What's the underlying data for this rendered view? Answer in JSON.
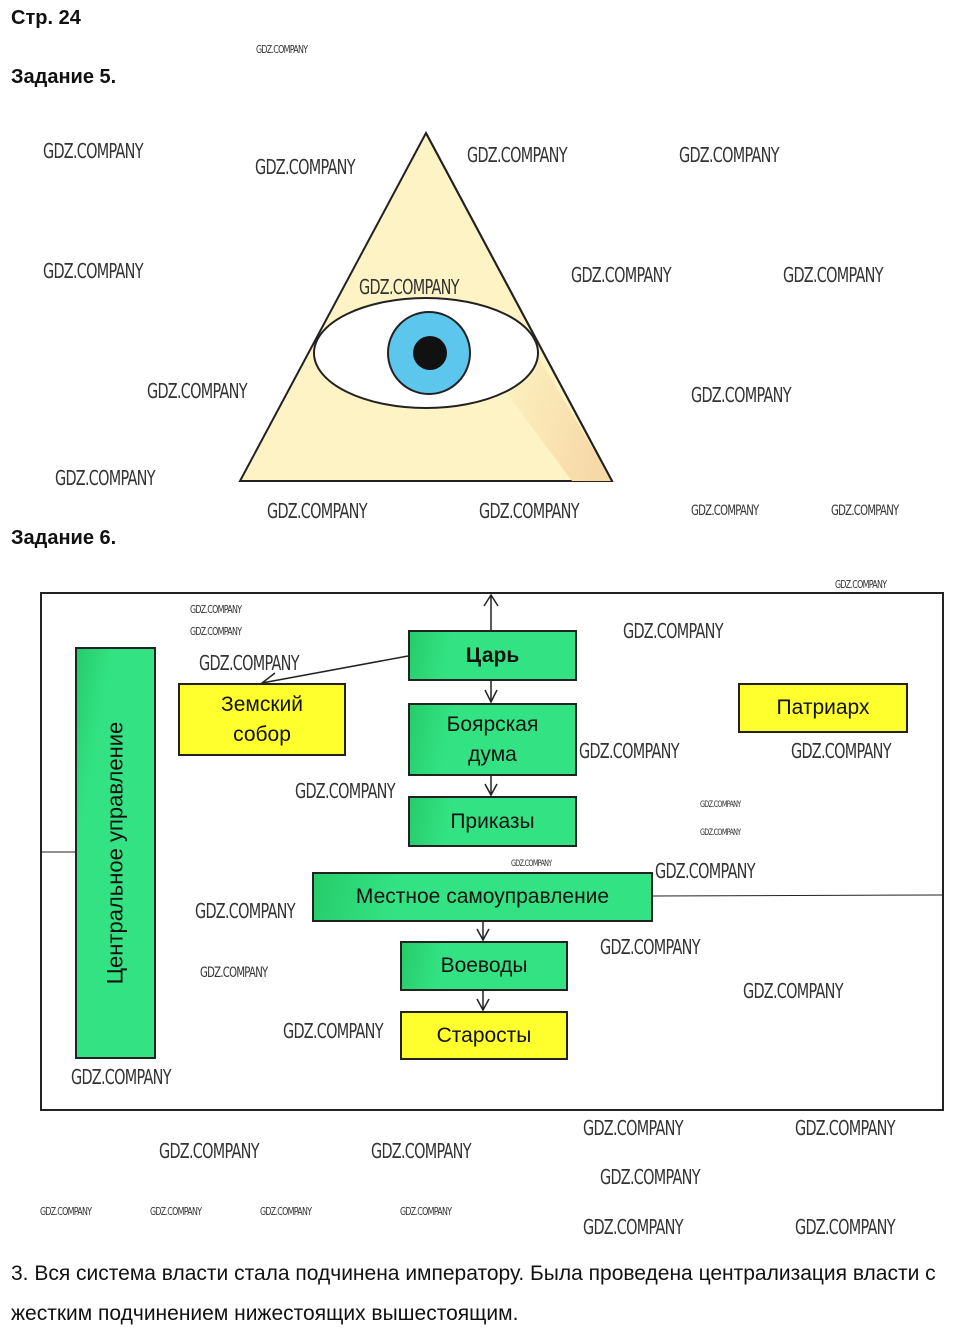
{
  "page_label": "Стр. 24",
  "watermark": "GDZ.COMPANY",
  "task5": {
    "title": "Задание 5."
  },
  "task6": {
    "title": "Задание 6.",
    "boxes": {
      "central": "Центральное управление",
      "tsar": "Царь",
      "zemsky_sobor": "Земский собор",
      "boyar_duma": "Боярская дума",
      "prikazy": "Приказы",
      "local_gov": "Местное самоуправление",
      "voevody": "Воеводы",
      "starosty": "Старосты",
      "patriarch": "Патриарх"
    },
    "colors": {
      "green": "#33e383",
      "yellow": "#ffff2e"
    }
  },
  "answer3": "3. Вся система власти стала подчинена императору. Была проведена централизация власти с жестким подчинением нижестоящих вышестоящим."
}
